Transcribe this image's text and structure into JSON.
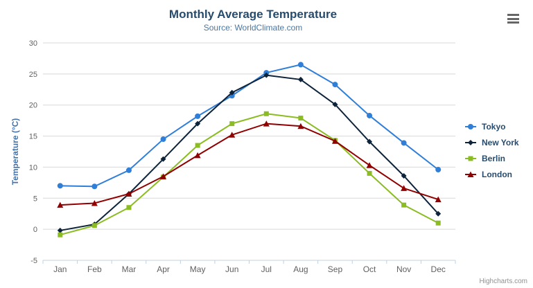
{
  "chart": {
    "credits": "Highcharts.com",
    "export_menu_icon": "hamburger"
  },
  "colors": {
    "title": "#274b6d",
    "subtitle": "#4d759e",
    "axis_labels": "#606060",
    "y_axis_title": "#4572a7",
    "grid_line": "#d8d8d8",
    "axis_line": "#c0d0e0",
    "legend_text": "#274b6d",
    "credits_text": "#909090",
    "menu_icon": "#666666"
  },
  "chart_data": {
    "type": "line",
    "title": "Monthly Average Temperature",
    "subtitle": "Source: WorldClimate.com",
    "xlabel": "",
    "ylabel": "Temperature (°C)",
    "ylim": [
      -5,
      30
    ],
    "yticks": [
      -5,
      0,
      5,
      10,
      15,
      20,
      25,
      30
    ],
    "grid": true,
    "legend_position": "right",
    "categories": [
      "Jan",
      "Feb",
      "Mar",
      "Apr",
      "May",
      "Jun",
      "Jul",
      "Aug",
      "Sep",
      "Oct",
      "Nov",
      "Dec"
    ],
    "series": [
      {
        "name": "Tokyo",
        "color": "#2f7ed8",
        "marker": "circle",
        "values": [
          7.0,
          6.9,
          9.5,
          14.5,
          18.2,
          21.5,
          25.2,
          26.5,
          23.3,
          18.3,
          13.9,
          9.6
        ]
      },
      {
        "name": "New York",
        "color": "#0d233a",
        "marker": "diamond",
        "values": [
          -0.2,
          0.8,
          5.7,
          11.3,
          17.0,
          22.0,
          24.8,
          24.1,
          20.1,
          14.1,
          8.6,
          2.5
        ]
      },
      {
        "name": "Berlin",
        "color": "#8bbc21",
        "marker": "square",
        "values": [
          -0.9,
          0.6,
          3.5,
          8.4,
          13.5,
          17.0,
          18.6,
          17.9,
          14.3,
          9.0,
          3.9,
          1.0
        ]
      },
      {
        "name": "London",
        "color": "#910000",
        "marker": "triangle",
        "values": [
          3.9,
          4.2,
          5.7,
          8.5,
          11.9,
          15.2,
          17.0,
          16.6,
          14.2,
          10.3,
          6.6,
          4.8
        ]
      }
    ]
  }
}
